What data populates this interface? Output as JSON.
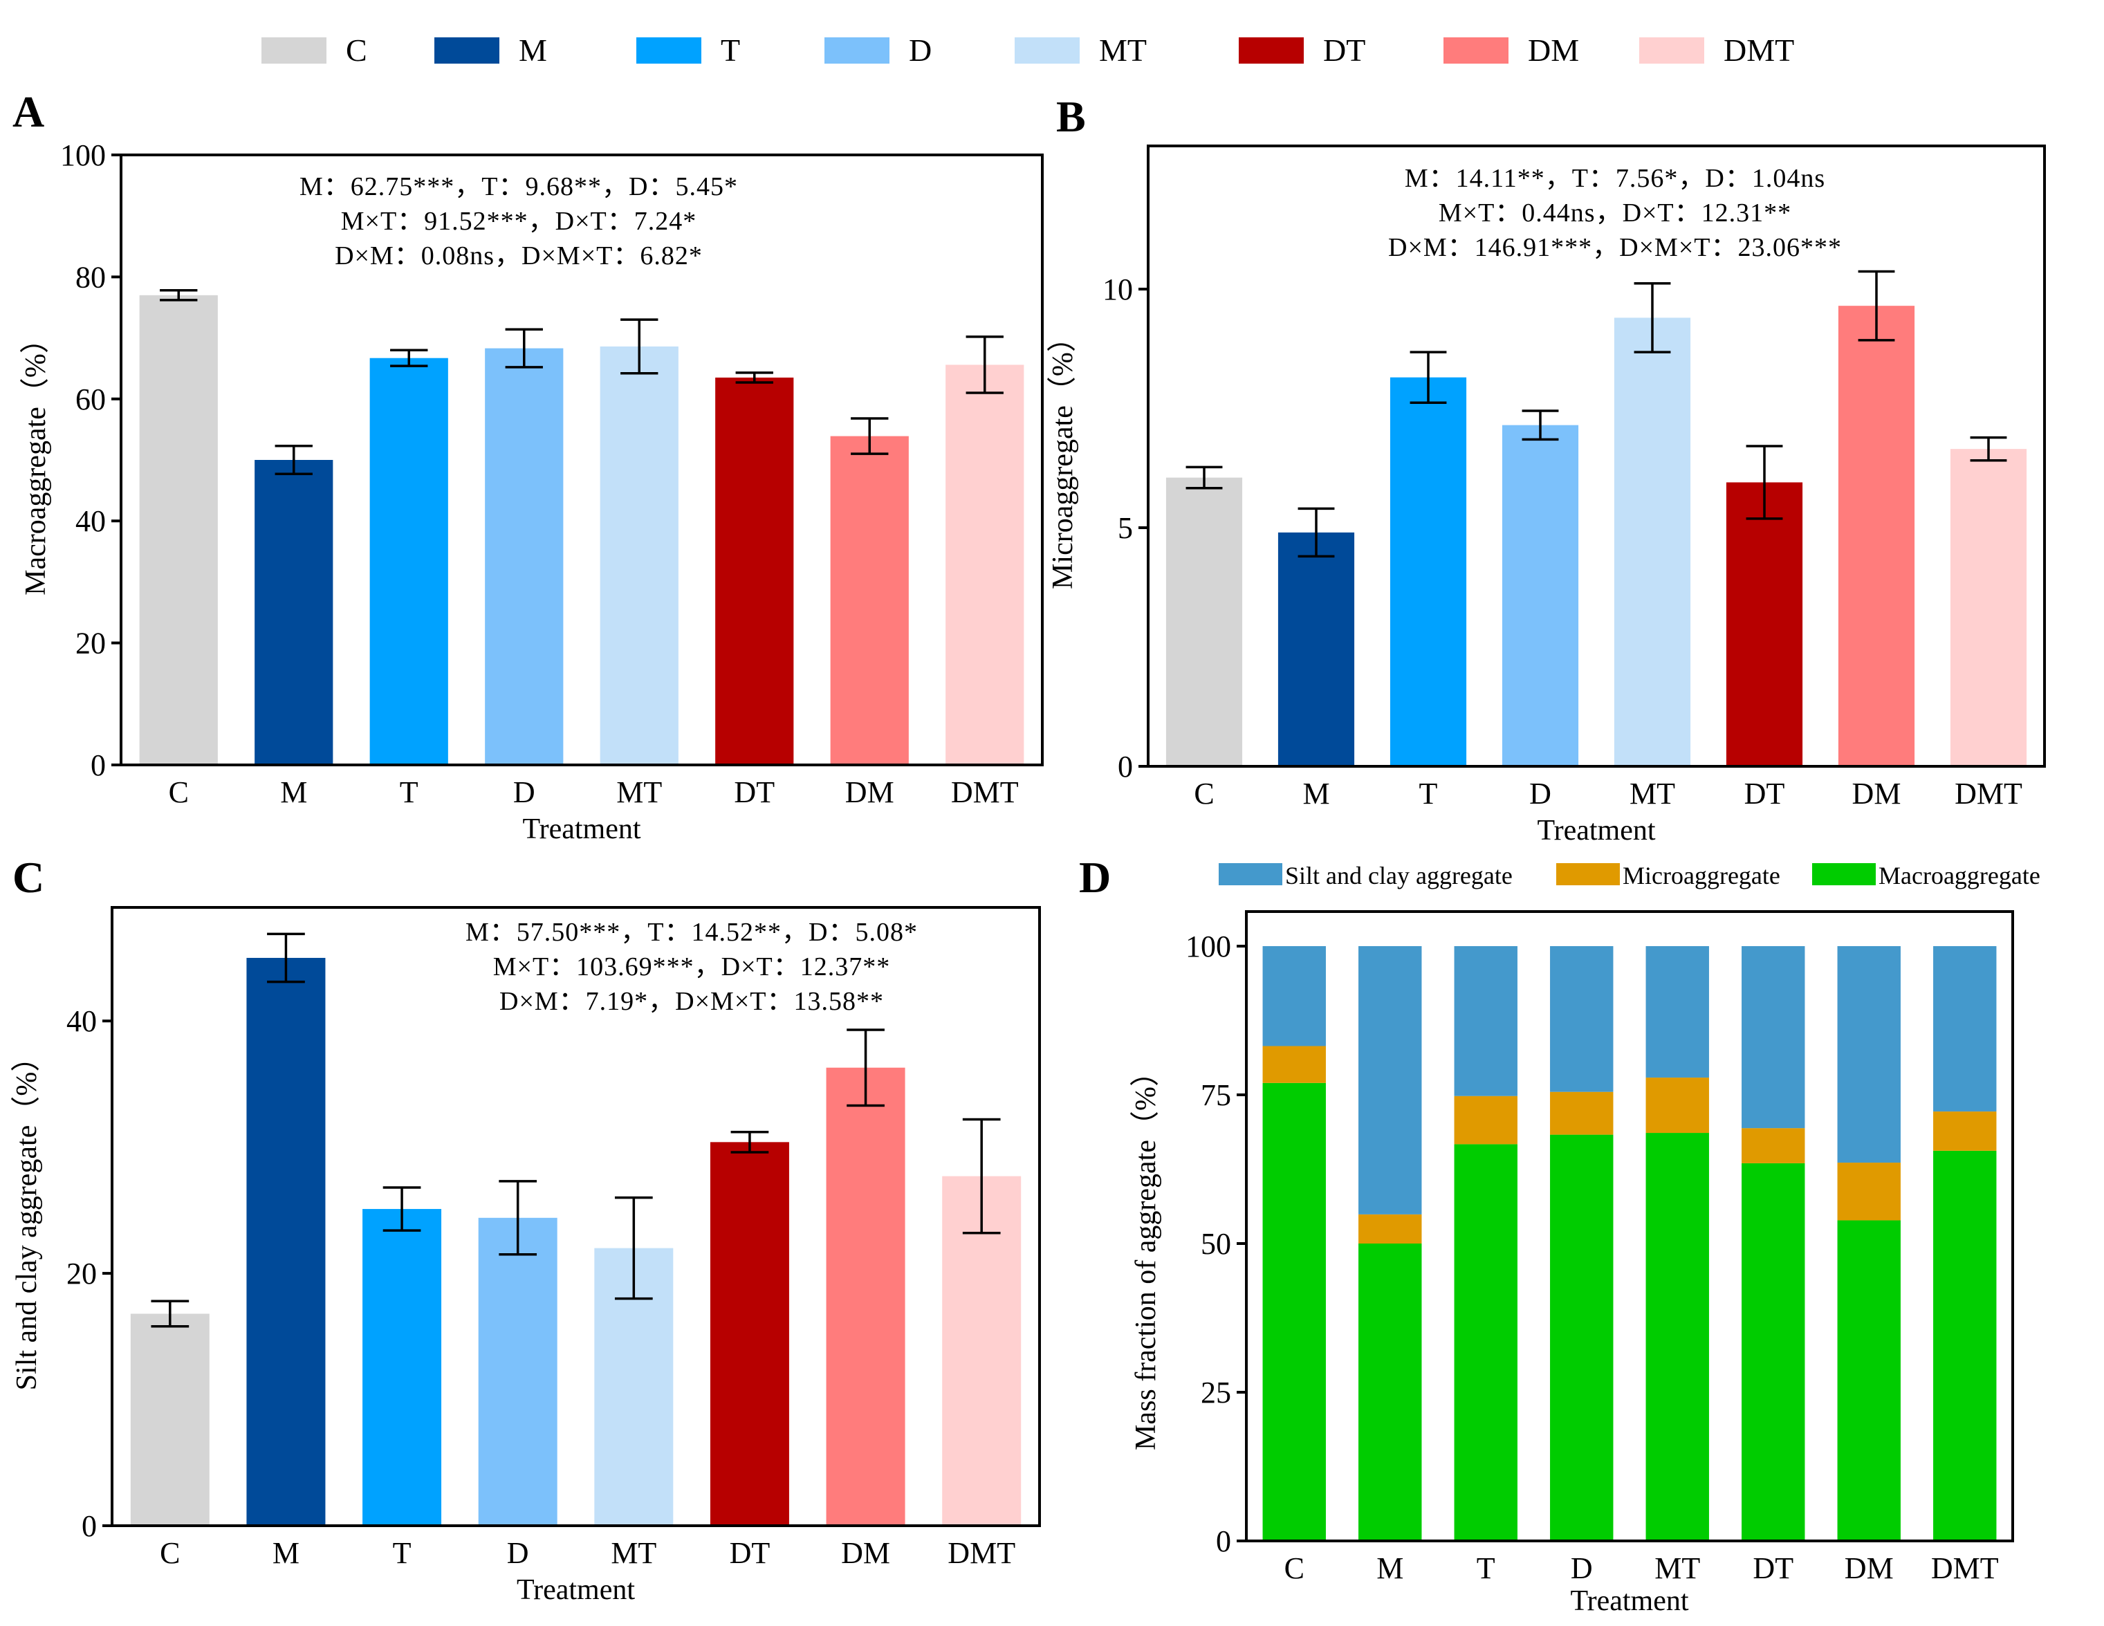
{
  "colors": {
    "C": "#d5d5d5",
    "M": "#004a99",
    "T": "#00a2ff",
    "D": "#7cc1fb",
    "MT": "#c2e0f9",
    "DT": "#b70000",
    "DM": "#ff7c7c",
    "DMT": "#ffd0d0",
    "silt": "#4499cc",
    "micro": "#e09a00",
    "macro": "#00cc00"
  },
  "legend": [
    "C",
    "M",
    "T",
    "D",
    "MT",
    "DT",
    "DM",
    "DMT"
  ],
  "chart_data": [
    {
      "panel": "A",
      "type": "bar",
      "categories": [
        "C",
        "M",
        "T",
        "D",
        "MT",
        "DT",
        "DM",
        "DMT"
      ],
      "values": [
        77,
        50,
        66.7,
        68.3,
        68.6,
        63.5,
        53.9,
        65.6
      ],
      "errors": [
        0.8,
        2.3,
        1.3,
        3.1,
        4.4,
        0.8,
        2.9,
        4.6
      ],
      "xlabel": "Treatment",
      "ylabel": "Macroaggregate（%）",
      "ylim": [
        0,
        100
      ],
      "yticks": [
        0,
        20,
        40,
        60,
        80,
        100
      ],
      "stats": [
        "M：62.75***，T：9.68**，D：5.45*",
        "M×T：91.52***，D×T：7.24*",
        "D×M：0.08ns，D×M×T：6.82*"
      ]
    },
    {
      "panel": "B",
      "type": "bar",
      "categories": [
        "C",
        "M",
        "T",
        "D",
        "MT",
        "DT",
        "DM",
        "DMT"
      ],
      "values": [
        6.05,
        4.9,
        8.15,
        7.15,
        9.4,
        5.95,
        9.65,
        6.65
      ],
      "errors": [
        0.22,
        0.5,
        0.53,
        0.3,
        0.72,
        0.76,
        0.72,
        0.24
      ],
      "xlabel": "Treatment",
      "ylabel": "Microaggregate（%）",
      "ylim": [
        0,
        13
      ],
      "yticks": [
        0,
        5,
        10
      ],
      "stats": [
        "M：14.11**，T：7.56*，D：1.04ns",
        "M×T：0.44ns，D×T：12.31**",
        "D×M：146.91***，D×M×T：23.06***"
      ]
    },
    {
      "panel": "C",
      "type": "bar",
      "categories": [
        "C",
        "M",
        "T",
        "D",
        "MT",
        "DT",
        "DM",
        "DMT"
      ],
      "values": [
        16.8,
        45,
        25.1,
        24.4,
        22,
        30.4,
        36.3,
        27.7
      ],
      "errors": [
        1.0,
        1.9,
        1.7,
        2.9,
        4.0,
        0.8,
        3.0,
        4.5
      ],
      "xlabel": "Treatment",
      "ylabel": "Silt and clay aggregate（%）",
      "ylim": [
        0,
        49
      ],
      "yticks": [
        0,
        20,
        40
      ],
      "stats": [
        "M：57.50***，T：14.52**，D：5.08*",
        "M×T：103.69***，D×T：12.37**",
        "D×M：7.19*，D×M×T：13.58**"
      ]
    },
    {
      "panel": "D",
      "type": "bar",
      "stacked": true,
      "categories": [
        "C",
        "M",
        "T",
        "D",
        "MT",
        "DT",
        "DM",
        "DMT"
      ],
      "series": [
        {
          "name": "Macroaggregate",
          "values": [
            77,
            50,
            66.7,
            68.3,
            68.6,
            63.5,
            53.9,
            65.6
          ]
        },
        {
          "name": "Microaggregate",
          "values": [
            6.2,
            4.9,
            8.1,
            7.2,
            9.3,
            5.9,
            9.7,
            6.6
          ]
        },
        {
          "name": "Silt and clay aggregate",
          "values": [
            16.8,
            45.1,
            25.2,
            24.5,
            22.1,
            30.6,
            36.4,
            27.8
          ]
        }
      ],
      "legend": [
        "Silt and clay aggregate",
        "Microaggregate",
        "Macroaggregate"
      ],
      "xlabel": "Treatment",
      "ylabel": "Mass fraction of aggregate（%）",
      "ylim": [
        0,
        100
      ],
      "yticks": [
        0,
        25,
        50,
        75,
        100
      ]
    }
  ]
}
